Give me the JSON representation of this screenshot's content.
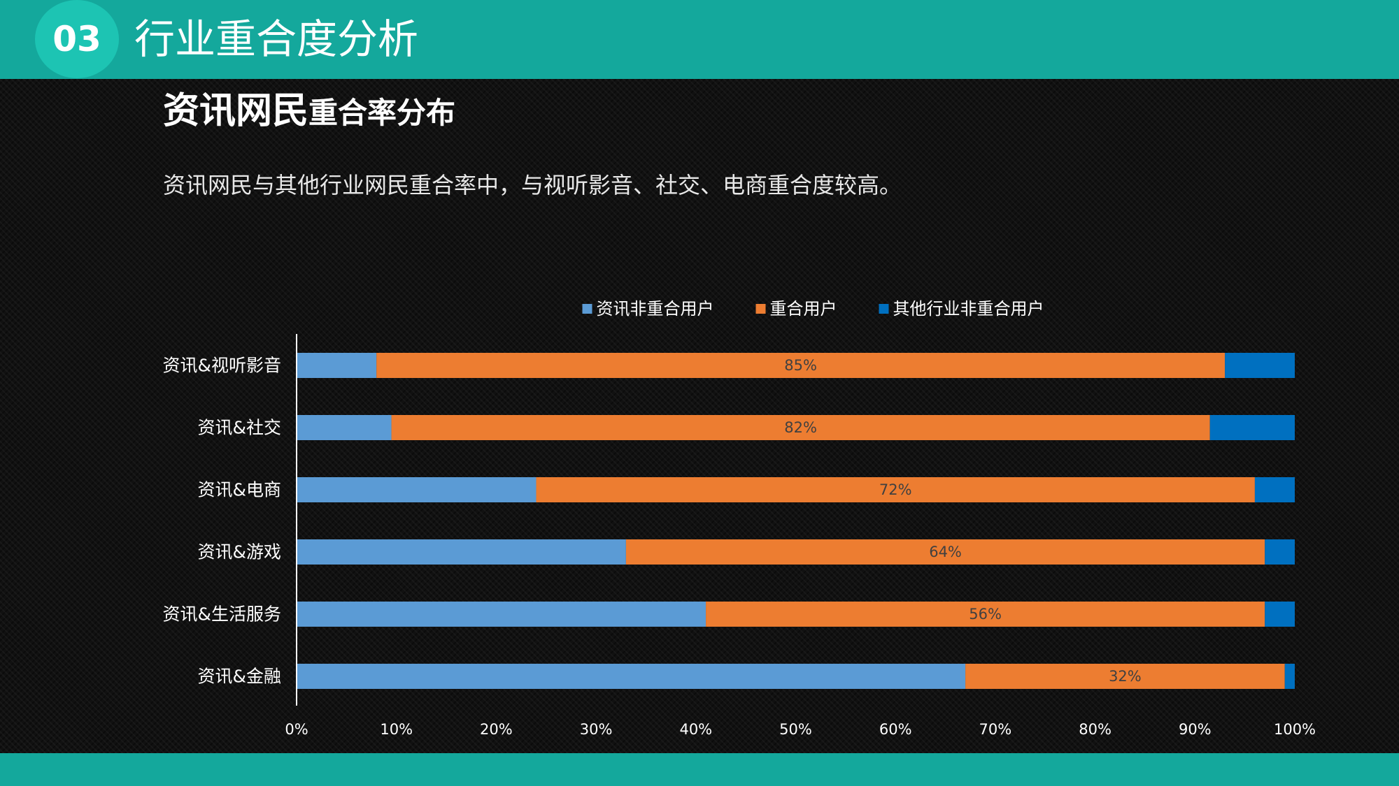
{
  "header": {
    "section_number": "03",
    "section_title": "行业重合度分析"
  },
  "slide": {
    "heading_main": "资讯网民",
    "heading_small": "重合率分布",
    "description": "资讯网民与其他行业网民重合率中，与视听影音、社交、电商重合度较高。"
  },
  "colors": {
    "header_band": "#14a89c",
    "section_circle": "#1dc4b3",
    "series_non_overlap": "#5b9bd5",
    "series_overlap": "#ed7d31",
    "series_other_non_overlap": "#0070c0"
  },
  "chart_data": {
    "type": "bar",
    "orientation": "horizontal",
    "stacked": "percent",
    "categories": [
      "资讯&视听影音",
      "资讯&社交",
      "资讯&电商",
      "资讯&游戏",
      "资讯&生活服务",
      "资讯&金融"
    ],
    "series": [
      {
        "name": "资讯非重合用户",
        "color": "#5b9bd5",
        "values": [
          8,
          9.5,
          24,
          33,
          41,
          67
        ]
      },
      {
        "name": "重合用户",
        "color": "#ed7d31",
        "values": [
          85,
          82,
          72,
          64,
          56,
          32
        ],
        "data_labels": [
          "85%",
          "82%",
          "72%",
          "64%",
          "56%",
          "32%"
        ]
      },
      {
        "name": "其他行业非重合用户",
        "color": "#0070c0",
        "values": [
          7,
          8.5,
          4,
          3,
          3,
          1
        ]
      }
    ],
    "xlim": [
      0,
      100
    ],
    "x_ticks": [
      "0%",
      "10%",
      "20%",
      "30%",
      "40%",
      "50%",
      "60%",
      "70%",
      "80%",
      "90%",
      "100%"
    ],
    "legend_position": "top",
    "grid": false
  }
}
